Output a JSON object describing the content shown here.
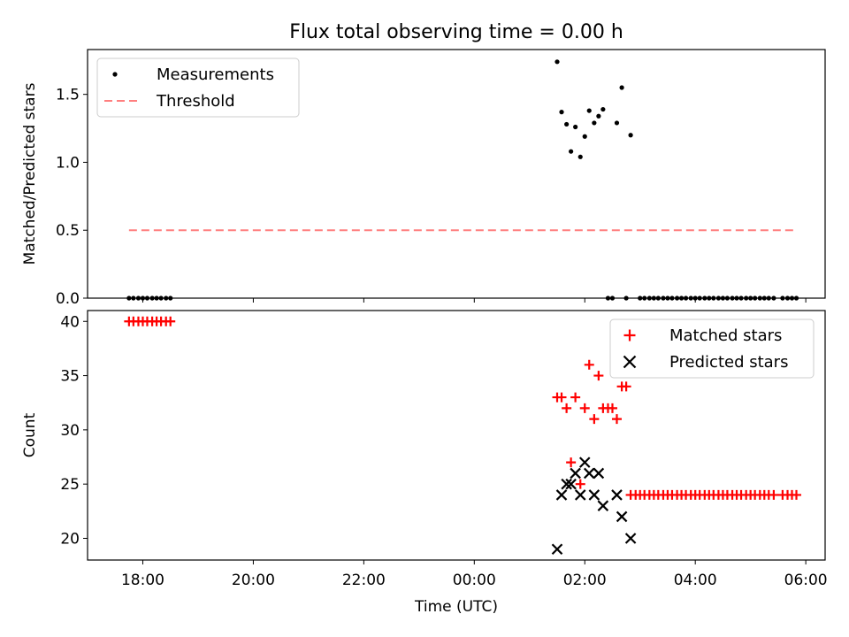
{
  "title": "Flux total observing time = 0.00 h",
  "chart_data": [
    {
      "type": "scatter",
      "ylabel": "Matched/Predicted stars",
      "xlabel": "",
      "xlim": [
        17.0,
        30.35
      ],
      "ylim": [
        0.0,
        1.83
      ],
      "yticks": [
        0.0,
        0.5,
        1.0,
        1.5
      ],
      "ytick_labels": [
        "0.0",
        "0.5",
        "1.0",
        "1.5"
      ],
      "grid": false,
      "legend_loc": "upper left",
      "series": [
        {
          "name": "Measurements",
          "marker": "dot",
          "color": "#000000",
          "x": [
            17.75,
            17.83,
            17.92,
            18.0,
            18.08,
            18.17,
            18.25,
            18.33,
            18.42,
            18.5,
            25.5,
            25.58,
            25.67,
            25.75,
            25.83,
            25.92,
            26.0,
            26.08,
            26.17,
            26.25,
            26.33,
            26.42,
            26.5,
            26.58,
            26.67,
            26.75,
            26.83,
            27.0,
            27.08,
            27.17,
            27.25,
            27.33,
            27.42,
            27.5,
            27.58,
            27.67,
            27.75,
            27.83,
            27.92,
            28.0,
            28.08,
            28.17,
            28.25,
            28.33,
            28.42,
            28.5,
            28.58,
            28.67,
            28.75,
            28.83,
            28.92,
            29.0,
            29.08,
            29.17,
            29.25,
            29.33,
            29.42,
            29.58,
            29.67,
            29.75,
            29.83
          ],
          "y": [
            0,
            0,
            0,
            0,
            0,
            0,
            0,
            0,
            0,
            0,
            1.74,
            1.37,
            1.28,
            1.08,
            1.26,
            1.04,
            1.19,
            1.38,
            1.29,
            1.34,
            1.39,
            0,
            0,
            1.29,
            1.55,
            0,
            1.2,
            0,
            0,
            0,
            0,
            0,
            0,
            0,
            0,
            0,
            0,
            0,
            0,
            0,
            0,
            0,
            0,
            0,
            0,
            0,
            0,
            0,
            0,
            0,
            0,
            0,
            0,
            0,
            0,
            0,
            0,
            0,
            0,
            0,
            0
          ]
        },
        {
          "name": "Threshold",
          "marker": "dashed-line",
          "color": "#ff7f7f",
          "x": [
            17.75,
            29.83
          ],
          "y": [
            0.5,
            0.5
          ]
        }
      ]
    },
    {
      "type": "scatter",
      "ylabel": "Count",
      "xlabel": "Time (UTC)",
      "xlim": [
        17.0,
        30.35
      ],
      "ylim": [
        18.0,
        41.0
      ],
      "yticks": [
        20,
        25,
        30,
        35,
        40
      ],
      "ytick_labels": [
        "20",
        "25",
        "30",
        "35",
        "40"
      ],
      "xticks": [
        18,
        20,
        22,
        24,
        26,
        28,
        30
      ],
      "xtick_labels": [
        "18:00",
        "20:00",
        "22:00",
        "00:00",
        "02:00",
        "04:00",
        "06:00"
      ],
      "grid": false,
      "legend_loc": "upper right",
      "series": [
        {
          "name": "Matched stars",
          "marker": "plus",
          "color": "#ff0000",
          "x": [
            17.75,
            17.83,
            17.92,
            18.0,
            18.08,
            18.17,
            18.25,
            18.33,
            18.42,
            18.5,
            25.5,
            25.58,
            25.67,
            25.75,
            25.83,
            25.92,
            26.0,
            26.08,
            26.17,
            26.25,
            26.33,
            26.42,
            26.5,
            26.58,
            26.67,
            26.75,
            26.83,
            26.92,
            27.0,
            27.08,
            27.17,
            27.25,
            27.33,
            27.42,
            27.5,
            27.58,
            27.67,
            27.75,
            27.83,
            27.92,
            28.0,
            28.08,
            28.17,
            28.25,
            28.33,
            28.42,
            28.5,
            28.58,
            28.67,
            28.75,
            28.83,
            28.92,
            29.0,
            29.08,
            29.17,
            29.25,
            29.33,
            29.42,
            29.58,
            29.67,
            29.75,
            29.83
          ],
          "y": [
            40,
            40,
            40,
            40,
            40,
            40,
            40,
            40,
            40,
            40,
            33,
            33,
            32,
            27,
            33,
            25,
            32,
            36,
            31,
            35,
            32,
            32,
            32,
            31,
            34,
            34,
            24,
            24,
            24,
            24,
            24,
            24,
            24,
            24,
            24,
            24,
            24,
            24,
            24,
            24,
            24,
            24,
            24,
            24,
            24,
            24,
            24,
            24,
            24,
            24,
            24,
            24,
            24,
            24,
            24,
            24,
            24,
            24,
            24,
            24,
            24,
            24
          ]
        },
        {
          "name": "Predicted stars",
          "marker": "x",
          "color": "#000000",
          "x": [
            25.5,
            25.58,
            25.67,
            25.75,
            25.83,
            25.92,
            26.0,
            26.08,
            26.17,
            26.25,
            26.33,
            26.58,
            26.67,
            26.83
          ],
          "y": [
            19,
            24,
            25,
            25,
            26,
            24,
            27,
            26,
            24,
            26,
            23,
            24,
            22,
            20
          ]
        }
      ]
    }
  ]
}
